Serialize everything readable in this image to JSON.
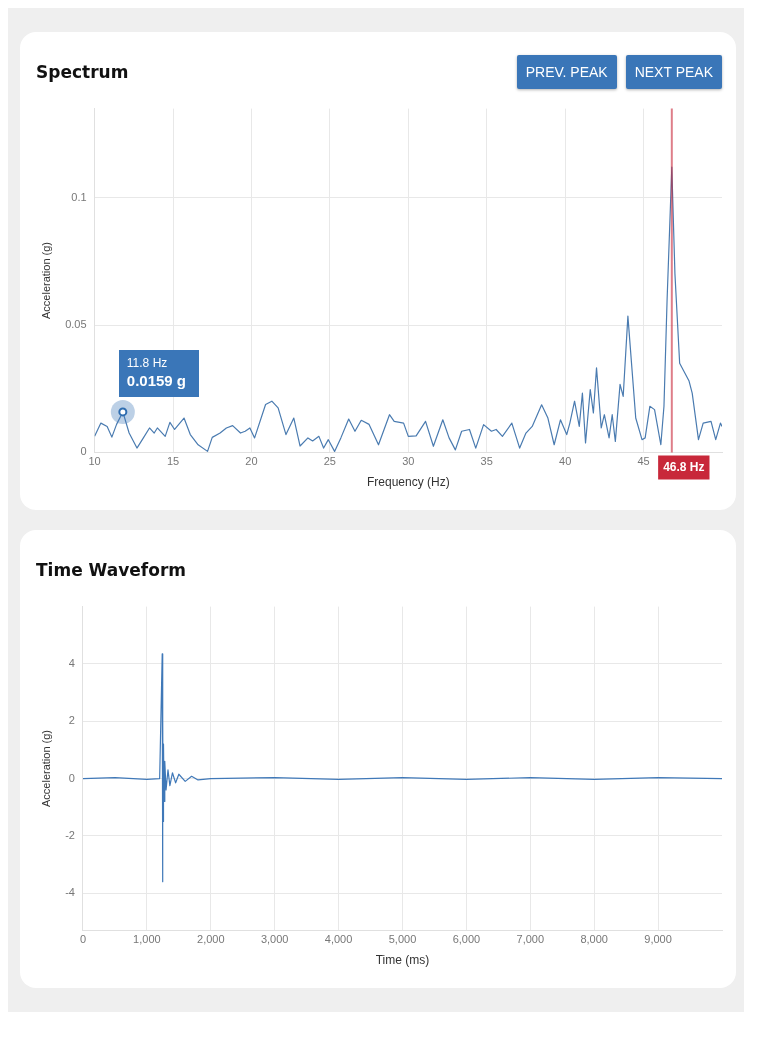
{
  "chart_data": [
    {
      "type": "line",
      "title": "Spectrum",
      "xlabel": "Frequency (Hz)",
      "ylabel": "Acceleration (g)",
      "xlim": [
        10,
        50
      ],
      "ylim": [
        0,
        0.135
      ],
      "xticks": [
        10,
        15,
        20,
        25,
        30,
        35,
        40,
        45
      ],
      "yticks": [
        0,
        0.05,
        0.1
      ],
      "grid": true,
      "series": [
        {
          "color": "#4a7bb0",
          "x": [
            10.0,
            10.4,
            10.8,
            11.1,
            11.4,
            11.8,
            12.2,
            12.7,
            13.1,
            13.5,
            13.8,
            14.0,
            14.5,
            14.8,
            15.1,
            15.7,
            16.1,
            16.6,
            17.2,
            17.5,
            18.0,
            18.4,
            18.8,
            19.3,
            19.6,
            19.9,
            20.2,
            20.9,
            21.3,
            21.7,
            22.2,
            22.7,
            23.1,
            23.6,
            23.9,
            24.3,
            24.6,
            24.9,
            25.3,
            25.7,
            26.2,
            26.6,
            27.0,
            27.5,
            28.1,
            28.8,
            29.1,
            29.7,
            30.0,
            30.5,
            31.1,
            31.6,
            32.2,
            32.6,
            33.0,
            33.4,
            33.9,
            34.3,
            34.8,
            35.3,
            35.6,
            36.0,
            36.6,
            37.1,
            37.5,
            37.9,
            38.5,
            38.9,
            39.3,
            39.7,
            40.1,
            40.3,
            40.6,
            40.9,
            41.1,
            41.3,
            41.6,
            41.8,
            42.0,
            42.3,
            42.5,
            42.8,
            43.0,
            43.2,
            43.5,
            43.7,
            44.0,
            44.5,
            44.9,
            45.1,
            45.4,
            45.7,
            46.1,
            46.3,
            46.5,
            46.8,
            47.0,
            47.3,
            47.9,
            48.1,
            48.5,
            48.8,
            49.3,
            49.6,
            49.9,
            50.0
          ],
          "values": [
            0.0063,
            0.0115,
            0.0102,
            0.006,
            0.011,
            0.0159,
            0.0076,
            0.0017,
            0.0056,
            0.0096,
            0.0076,
            0.0096,
            0.0063,
            0.0118,
            0.009,
            0.0135,
            0.007,
            0.003,
            0.0004,
            0.0059,
            0.0076,
            0.0096,
            0.0105,
            0.0076,
            0.0083,
            0.0096,
            0.0057,
            0.0188,
            0.0201,
            0.0175,
            0.007,
            0.0135,
            0.0025,
            0.0057,
            0.0045,
            0.0063,
            0.0017,
            0.005,
            0.0004,
            0.0057,
            0.0131,
            0.0083,
            0.0126,
            0.011,
            0.003,
            0.0148,
            0.0122,
            0.0115,
            0.0063,
            0.0065,
            0.0122,
            0.0024,
            0.0128,
            0.0057,
            0.001,
            0.0083,
            0.009,
            0.0017,
            0.0109,
            0.0083,
            0.009,
            0.0063,
            0.0115,
            0.0017,
            0.0076,
            0.0102,
            0.0187,
            0.0135,
            0.003,
            0.0128,
            0.007,
            0.0115,
            0.0201,
            0.0102,
            0.0233,
            0.0037,
            0.0247,
            0.0155,
            0.0332,
            0.0096,
            0.0148,
            0.0057,
            0.0148,
            0.0043,
            0.0267,
            0.022,
            0.0535,
            0.0135,
            0.005,
            0.0057,
            0.0181,
            0.0168,
            0.003,
            0.0181,
            0.06,
            0.112,
            0.07,
            0.035,
            0.028,
            0.0233,
            0.005,
            0.0115,
            0.0122,
            0.005,
            0.0115,
            0.0102
          ]
        }
      ],
      "ref_lines": [
        {
          "axis": "x",
          "value": 46.8,
          "label": "46.8 Hz",
          "color": "#c8283a"
        }
      ],
      "annotations": [
        "PREV. PEAK",
        "NEXT PEAK",
        "11.8 Hz",
        {
          "text": "0.0159 g",
          "x": 11.8,
          "y": 0.0159
        }
      ]
    },
    {
      "type": "line",
      "title": "Time Waveform",
      "xlabel": "Time (ms)",
      "ylabel": "Acceleration (g)",
      "xlim": [
        0,
        10000
      ],
      "ylim": [
        -5.3,
        6
      ],
      "xticks": [
        0,
        {
          "value": 1000,
          "label": "1,000"
        },
        {
          "value": 2000,
          "label": "2,000"
        },
        {
          "value": 3000,
          "label": "3,000"
        },
        {
          "value": 4000,
          "label": "4,000"
        },
        {
          "value": 5000,
          "label": "5,000"
        },
        {
          "value": 6000,
          "label": "6,000"
        },
        {
          "value": 7000,
          "label": "7,000"
        },
        {
          "value": 8000,
          "label": "8,000"
        },
        {
          "value": 9000,
          "label": "9,000"
        }
      ],
      "yticks": [
        -4,
        -2,
        0,
        2,
        4
      ],
      "grid": true,
      "series": [
        {
          "color": "#3f78b8",
          "x": [
            0,
            500,
            1000,
            1200,
            1240,
            1245,
            1250,
            1255,
            1260,
            1270,
            1280,
            1300,
            1330,
            1360,
            1400,
            1450,
            1500,
            1600,
            1700,
            1800,
            2000,
            3000,
            4000,
            5000,
            6000,
            7000,
            8000,
            9000,
            10000
          ],
          "values": [
            0,
            0.03,
            -0.03,
            0,
            4.35,
            -3.6,
            2.1,
            -1.5,
            1.2,
            -0.8,
            0.6,
            -0.4,
            0.3,
            -0.25,
            0.2,
            -0.15,
            0.15,
            -0.1,
            0.08,
            -0.05,
            0,
            0.03,
            -0.03,
            0.03,
            -0.03,
            0.03,
            -0.03,
            0.03,
            0
          ]
        }
      ]
    }
  ]
}
